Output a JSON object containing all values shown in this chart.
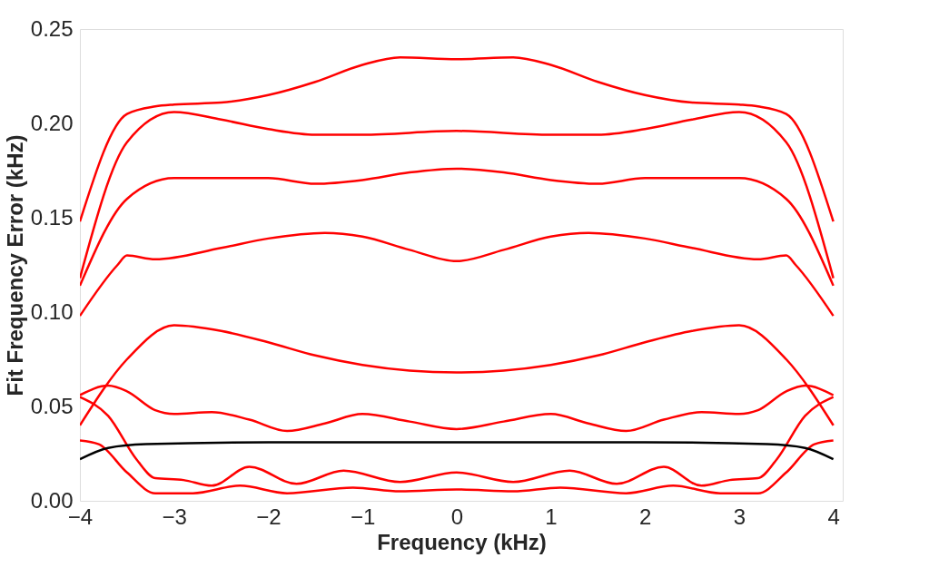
{
  "chart_data": {
    "type": "line",
    "xlabel": "Frequency (kHz)",
    "ylabel": "Fit Frequency Error (kHz)",
    "xlim": [
      -4,
      4.1
    ],
    "ylim": [
      0,
      0.25
    ],
    "xticks": [
      {
        "value": -4,
        "label": "−4"
      },
      {
        "value": -3,
        "label": "−3"
      },
      {
        "value": -2,
        "label": "−2"
      },
      {
        "value": -1,
        "label": "−1"
      },
      0,
      1,
      2,
      3,
      4
    ],
    "yticks": [
      {
        "value": 0,
        "label": "0.00"
      },
      {
        "value": 0.05,
        "label": "0.05"
      },
      {
        "value": 0.1,
        "label": "0.10"
      },
      {
        "value": 0.15,
        "label": "0.15"
      },
      {
        "value": 0.2,
        "label": "0.20"
      },
      {
        "value": 0.25,
        "label": "0.25"
      }
    ],
    "grid": false,
    "line_style": "solid",
    "marker": "none",
    "series": [
      {
        "color": "#ff0000",
        "x": [
          -4,
          -3.5,
          -3.2,
          -3,
          -2.5,
          -2,
          -1.5,
          -1,
          -0.6,
          0,
          0.6,
          1,
          1.5,
          2,
          2.5,
          3,
          3.2,
          3.5,
          4
        ],
        "values": [
          0.148,
          0.205,
          0.209,
          0.21,
          0.211,
          0.215,
          0.222,
          0.231,
          0.235,
          0.234,
          0.235,
          0.231,
          0.222,
          0.215,
          0.211,
          0.21,
          0.209,
          0.205,
          0.148
        ]
      },
      {
        "color": "#ff0000",
        "x": [
          -4,
          -3.5,
          -3,
          -2.5,
          -2,
          -1.5,
          -1,
          0,
          1,
          1.5,
          2,
          2.5,
          3,
          3.5,
          4
        ],
        "values": [
          0.118,
          0.19,
          0.206,
          0.202,
          0.197,
          0.194,
          0.194,
          0.196,
          0.194,
          0.194,
          0.197,
          0.202,
          0.206,
          0.19,
          0.118
        ]
      },
      {
        "color": "#ff0000",
        "x": [
          -4,
          -3.5,
          -3,
          -2,
          -1.5,
          -1,
          -0.5,
          0,
          0.5,
          1,
          1.5,
          2,
          3,
          3.5,
          4
        ],
        "values": [
          0.114,
          0.16,
          0.171,
          0.171,
          0.168,
          0.17,
          0.174,
          0.176,
          0.174,
          0.17,
          0.168,
          0.171,
          0.171,
          0.16,
          0.114
        ]
      },
      {
        "color": "#ff0000",
        "x": [
          -4,
          -3.6,
          -3.5,
          -3.2,
          -2.5,
          -2,
          -1.4,
          -1,
          -0.5,
          0,
          0.5,
          1,
          1.4,
          2,
          2.5,
          3.2,
          3.5,
          3.6,
          4
        ],
        "values": [
          0.098,
          0.125,
          0.13,
          0.128,
          0.134,
          0.139,
          0.142,
          0.14,
          0.133,
          0.127,
          0.133,
          0.14,
          0.142,
          0.139,
          0.134,
          0.128,
          0.13,
          0.125,
          0.098
        ]
      },
      {
        "color": "#ff0000",
        "x": [
          -4,
          -3.5,
          -3,
          -2.5,
          -2,
          -1.5,
          -1,
          -0.5,
          0,
          0.5,
          1,
          1.5,
          2,
          2.5,
          3,
          3.5,
          4
        ],
        "values": [
          0.04,
          0.075,
          0.093,
          0.09,
          0.084,
          0.077,
          0.072,
          0.069,
          0.068,
          0.069,
          0.072,
          0.077,
          0.084,
          0.09,
          0.093,
          0.075,
          0.04
        ]
      },
      {
        "color": "#ff0000",
        "x": [
          -4,
          -3.7,
          -3.5,
          -3.2,
          -3,
          -2.6,
          -2.2,
          -1.8,
          -1.4,
          -1,
          -0.5,
          0,
          0.5,
          1,
          1.4,
          1.8,
          2.2,
          2.6,
          3,
          3.2,
          3.5,
          3.7,
          4
        ],
        "values": [
          0.056,
          0.061,
          0.058,
          0.048,
          0.046,
          0.047,
          0.043,
          0.037,
          0.041,
          0.046,
          0.042,
          0.038,
          0.042,
          0.046,
          0.041,
          0.037,
          0.043,
          0.047,
          0.046,
          0.048,
          0.058,
          0.061,
          0.056
        ]
      },
      {
        "color": "#ff0000",
        "x": [
          -4,
          -3.7,
          -3.4,
          -3.2,
          -2.9,
          -2.6,
          -2.2,
          -1.7,
          -1.2,
          -0.6,
          0,
          0.6,
          1.2,
          1.7,
          2.2,
          2.6,
          2.9,
          3.2,
          3.4,
          3.7,
          4
        ],
        "values": [
          0.055,
          0.045,
          0.022,
          0.012,
          0.011,
          0.008,
          0.018,
          0.009,
          0.016,
          0.01,
          0.015,
          0.01,
          0.016,
          0.009,
          0.018,
          0.008,
          0.011,
          0.012,
          0.022,
          0.045,
          0.055
        ]
      },
      {
        "color": "#ff0000",
        "x": [
          -4,
          -3.8,
          -3.5,
          -3.2,
          -2.8,
          -2.3,
          -1.8,
          -1.1,
          -0.6,
          0,
          0.6,
          1.1,
          1.8,
          2.3,
          2.8,
          3.2,
          3.5,
          3.8,
          4
        ],
        "values": [
          0.032,
          0.03,
          0.015,
          0.004,
          0.004,
          0.008,
          0.004,
          0.007,
          0.005,
          0.006,
          0.005,
          0.007,
          0.004,
          0.008,
          0.004,
          0.004,
          0.015,
          0.03,
          0.032
        ]
      },
      {
        "color": "#000000",
        "x": [
          -4,
          -3.7,
          -3.3,
          -2,
          0,
          2,
          3.3,
          3.7,
          4
        ],
        "values": [
          0.022,
          0.028,
          0.03,
          0.031,
          0.031,
          0.031,
          0.03,
          0.028,
          0.022
        ]
      }
    ]
  }
}
